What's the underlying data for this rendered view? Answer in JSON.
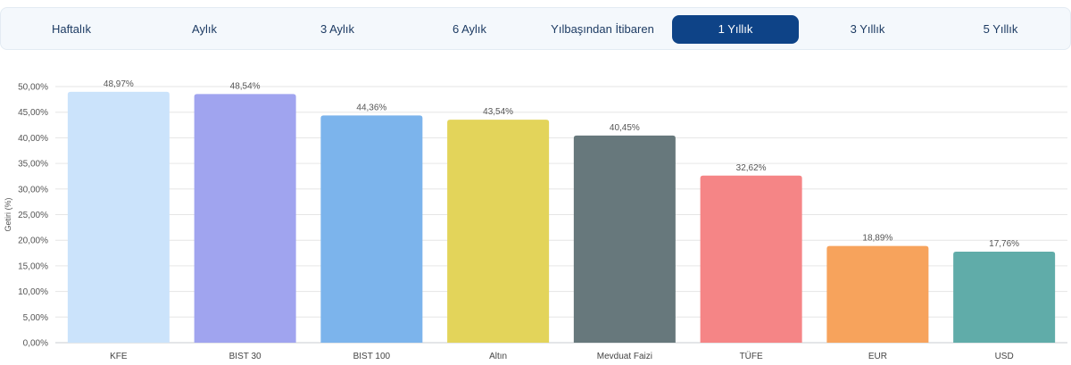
{
  "tabs": [
    {
      "label": "Haftalık",
      "active": false
    },
    {
      "label": "Aylık",
      "active": false
    },
    {
      "label": "3 Aylık",
      "active": false
    },
    {
      "label": "6 Aylık",
      "active": false
    },
    {
      "label": "Yılbaşından İtibaren",
      "active": false
    },
    {
      "label": "1 Yıllık",
      "active": true
    },
    {
      "label": "3 Yıllık",
      "active": false
    },
    {
      "label": "5 Yıllık",
      "active": false
    }
  ],
  "chart_data": {
    "type": "bar",
    "categories": [
      "KFE",
      "BIST 30",
      "BIST 100",
      "Altın",
      "Mevduat Faizi",
      "TÜFE",
      "EUR",
      "USD"
    ],
    "values": [
      48.97,
      48.54,
      44.36,
      43.54,
      40.45,
      32.62,
      18.89,
      17.76
    ],
    "data_labels": [
      "48,97%",
      "48,54%",
      "44,36%",
      "43,54%",
      "40,45%",
      "32,62%",
      "18,89%",
      "17,76%"
    ],
    "colors": [
      "#cbe3fb",
      "#a0a4ef",
      "#7cb4ec",
      "#e3d45a",
      "#67787c",
      "#f58586",
      "#f7a35c",
      "#60aca9"
    ],
    "ylabel": "Getiri (%)",
    "ylim": [
      0,
      50
    ],
    "yticks": [
      0,
      5,
      10,
      15,
      20,
      25,
      30,
      35,
      40,
      45,
      50
    ],
    "ytick_labels": [
      "0,00%",
      "5,00%",
      "10,00%",
      "15,00%",
      "20,00%",
      "25,00%",
      "30,00%",
      "35,00%",
      "40,00%",
      "45,00%",
      "50,00%"
    ],
    "grid": true,
    "legend": "none"
  }
}
